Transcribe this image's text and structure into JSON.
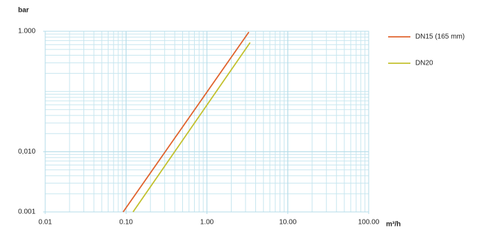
{
  "chart_data": {
    "type": "line",
    "ylabel": "bar",
    "xlabel": "m³/h",
    "xscale": "log",
    "yscale": "log",
    "grid": true,
    "legend": "right",
    "xlim": [
      0.01,
      100
    ],
    "ylim": [
      0.001,
      1
    ],
    "xticks": [
      0.01,
      {
        "value": 0.1,
        "label": "0.10"
      },
      {
        "value": 1,
        "label": "1.00"
      },
      {
        "value": 10,
        "label": "10.00"
      },
      {
        "value": 100,
        "label": "100.00"
      }
    ],
    "yticks": [
      0.001,
      {
        "value": 0.01,
        "label": "0,010"
      },
      {
        "value": 1,
        "label": "1.000"
      }
    ],
    "series": [
      {
        "name": "DN15 (165 mm)",
        "color": "#e0622c",
        "x": [
          0.092,
          3.3
        ],
        "values": [
          0.001,
          0.97
        ]
      },
      {
        "name": "DN20",
        "color": "#c2c02c",
        "x": [
          0.122,
          3.42
        ],
        "values": [
          0.001,
          0.65
        ]
      }
    ]
  }
}
